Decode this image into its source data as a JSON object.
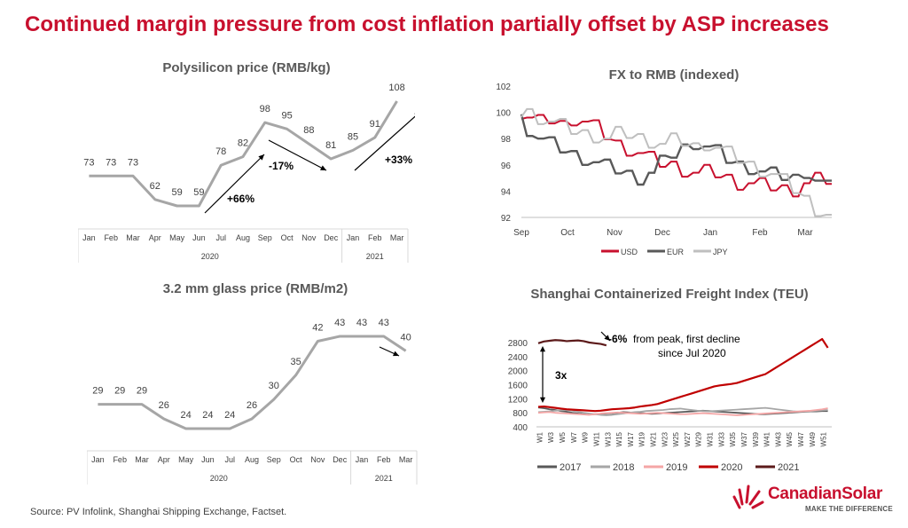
{
  "title": "Continued margin pressure from cost inflation partially offset by ASP increases",
  "source": "Source: PV Infolink, Shanghai Shipping Exchange, Factset.",
  "logo": {
    "name": "CanadianSolar",
    "tagline": "MAKE THE DIFFERENCE"
  },
  "colors": {
    "title": "#c8102e",
    "line_gray": "#a6a6a6",
    "usd": "#c8102e",
    "eur": "#595959",
    "jpy": "#bfbfbf",
    "y2017": "#595959",
    "y2018": "#a6a6a6",
    "y2019": "#f4a6a6",
    "y2020": "#c00000",
    "y2021": "#5c1a1a"
  },
  "chart_data": [
    {
      "type": "line",
      "title": "Polysilicon price (RMB/kg)",
      "categories": [
        "Jan",
        "Feb",
        "Mar",
        "Apr",
        "May",
        "Jun",
        "Jul",
        "Aug",
        "Sep",
        "Oct",
        "Nov",
        "Dec",
        "Jan",
        "Feb",
        "Mar"
      ],
      "values": [
        73,
        73,
        73,
        62,
        59,
        59,
        78,
        82,
        98,
        95,
        88,
        81,
        85,
        91,
        108
      ],
      "year_groups": [
        {
          "label": "2020",
          "months": 12
        },
        {
          "label": "2021",
          "months": 3
        }
      ],
      "annotations": [
        "+66%",
        "-17%",
        "+33%"
      ]
    },
    {
      "type": "line",
      "title": "3.2 mm glass price (RMB/m2)",
      "categories": [
        "Jan",
        "Feb",
        "Mar",
        "Apr",
        "May",
        "Jun",
        "Jul",
        "Aug",
        "Sep",
        "Oct",
        "Nov",
        "Dec",
        "Jan",
        "Feb",
        "Mar"
      ],
      "values": [
        29,
        29,
        29,
        26,
        24,
        24,
        24,
        26,
        30,
        35,
        42,
        43,
        43,
        43,
        40
      ],
      "year_groups": [
        {
          "label": "2020",
          "months": 12
        },
        {
          "label": "2021",
          "months": 3
        }
      ]
    },
    {
      "type": "line",
      "title": "FX to RMB (indexed)",
      "x_ticks": [
        "Sep",
        "Oct",
        "Nov",
        "Dec",
        "Jan",
        "Feb",
        "Mar"
      ],
      "y_ticks": [
        "102",
        "100",
        "98",
        "96",
        "94",
        "92"
      ],
      "ylim": [
        92,
        102
      ],
      "legend": "bottom",
      "series": [
        {
          "name": "USD",
          "values": [
            100,
            99.6,
            99.3,
            99.4,
            99.1,
            99.5,
            99.3,
            98.9,
            98.2,
            97.6,
            97.2,
            96.9,
            96.5,
            96.1,
            96.0,
            95.6,
            95.4,
            95.5,
            95.3,
            95.0,
            94.6,
            94.6,
            94.5,
            94.3,
            94.2,
            94.1,
            94.6,
            94.9,
            94.8
          ]
        },
        {
          "name": "EUR",
          "values": [
            99.6,
            98.7,
            98.0,
            97.6,
            97.2,
            96.8,
            96.5,
            96.2,
            95.9,
            95.6,
            95.3,
            95.0,
            95.4,
            96.2,
            96.8,
            97.3,
            97.7,
            97.4,
            97.0,
            96.4,
            96.0,
            95.8,
            95.5,
            95.3,
            95.1,
            95.0,
            95.5,
            94.8,
            94.3
          ]
        },
        {
          "name": "JPY",
          "values": [
            99.9,
            100.0,
            99.6,
            99.3,
            99.0,
            98.6,
            98.4,
            98.2,
            98.0,
            98.4,
            98.3,
            98.1,
            97.8,
            97.6,
            97.9,
            97.7,
            97.4,
            97.6,
            97.3,
            96.9,
            96.4,
            96.0,
            95.6,
            95.3,
            94.8,
            94.1,
            93.4,
            92.6,
            92.2
          ]
        }
      ]
    },
    {
      "type": "line",
      "title": "Shanghai Containerized Freight Index (TEU)",
      "x_ticks": [
        "W1",
        "W3",
        "W5",
        "W7",
        "W9",
        "W11",
        "W13",
        "W15",
        "W17",
        "W19",
        "W21",
        "W23",
        "W25",
        "W27",
        "W29",
        "W31",
        "W33",
        "W35",
        "W37",
        "W39",
        "W41",
        "W43",
        "W45",
        "W47",
        "W49",
        "W51"
      ],
      "y_ticks": [
        "2800",
        "2400",
        "2000",
        "1600",
        "1200",
        "800",
        "400"
      ],
      "ylim": [
        400,
        2800
      ],
      "legend": "bottom",
      "series": [
        {
          "name": "2017",
          "values": [
            950,
            930,
            900,
            880,
            850,
            830,
            800,
            780,
            760,
            750,
            760,
            770,
            780,
            790,
            800,
            820,
            810,
            800,
            790,
            780,
            770,
            780,
            790,
            800,
            810,
            820,
            830,
            840,
            850,
            860,
            850,
            840,
            830,
            820,
            810,
            800,
            790,
            780,
            770,
            760,
            760,
            770,
            780,
            790,
            800,
            810,
            820,
            830,
            840,
            840,
            850,
            850
          ]
        },
        {
          "name": "2018",
          "values": [
            820,
            830,
            840,
            860,
            870,
            880,
            860,
            830,
            800,
            780,
            760,
            740,
            730,
            740,
            760,
            780,
            800,
            820,
            830,
            850,
            860,
            870,
            880,
            900,
            910,
            920,
            900,
            880,
            860,
            850,
            840,
            850,
            860,
            870,
            880,
            890,
            900,
            910,
            920,
            930,
            940,
            920,
            900,
            880,
            860,
            840,
            830,
            840,
            850,
            860,
            870,
            880
          ]
        },
        {
          "name": "2019",
          "values": [
            800,
            810,
            820,
            800,
            790,
            780,
            770,
            760,
            750,
            740,
            760,
            780,
            790,
            800,
            810,
            800,
            790,
            780,
            770,
            780,
            790,
            800,
            790,
            780,
            770,
            760,
            760,
            770,
            780,
            790,
            780,
            770,
            760,
            750,
            740,
            730,
            740,
            750,
            760,
            770,
            780,
            790,
            800,
            810,
            820,
            830,
            840,
            850,
            860,
            880,
            900,
            930
          ]
        },
        {
          "name": "2020",
          "values": [
            970,
            980,
            960,
            940,
            920,
            900,
            890,
            880,
            870,
            860,
            850,
            860,
            880,
            900,
            910,
            920,
            930,
            950,
            980,
            1000,
            1020,
            1050,
            1100,
            1150,
            1200,
            1250,
            1300,
            1350,
            1400,
            1450,
            1500,
            1550,
            1580,
            1600,
            1620,
            1650,
            1700,
            1750,
            1800,
            1850,
            1900,
            2000,
            2100,
            2200,
            2300,
            2400,
            2500,
            2600,
            2700,
            2800,
            2900,
            2650
          ]
        },
        {
          "name": "2021",
          "values": [
            2780,
            2830,
            2850,
            2870,
            2860,
            2840,
            2850,
            2860,
            2840,
            2800,
            2780,
            2760,
            2720
          ]
        }
      ],
      "annotations": [
        "-6%",
        "from peak, first decline",
        "since Jul 2020",
        "3x"
      ]
    }
  ]
}
